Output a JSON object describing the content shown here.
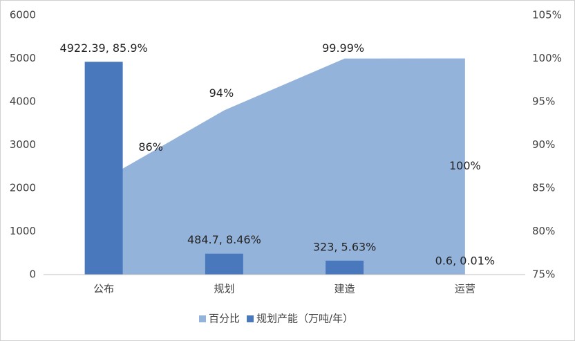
{
  "chart_data": {
    "type": "bar",
    "categories": [
      "公布",
      "规划",
      "建造",
      "运营"
    ],
    "series": [
      {
        "name": "百分比",
        "type": "area",
        "axis": "y2",
        "color": "#94b3da",
        "values": [
          86,
          94,
          99.99,
          100
        ],
        "value_labels": [
          "86%",
          "94%",
          "99.99%",
          "100%"
        ]
      },
      {
        "name": "规划产能（万吨/年）",
        "type": "bar",
        "color": "#4a78bd",
        "values": [
          4922.39,
          484.7,
          323,
          0.6
        ],
        "value_labels": [
          "4922.39, 85.9%",
          "484.7, 8.46%",
          "323, 5.63%",
          "0.6, 0.01%"
        ]
      }
    ],
    "ylim": [
      0,
      6000
    ],
    "yticks": [
      0,
      1000,
      2000,
      3000,
      4000,
      5000,
      6000
    ],
    "y2lim": [
      75,
      105
    ],
    "y2ticks": [
      {
        "value": 75,
        "label": "75%"
      },
      {
        "value": 80,
        "label": "80%"
      },
      {
        "value": 85,
        "label": "85%"
      },
      {
        "value": 90,
        "label": "90%"
      },
      {
        "value": 95,
        "label": "95%"
      },
      {
        "value": 100,
        "label": "100%"
      },
      {
        "value": 105,
        "label": "105%"
      }
    ],
    "legend": "bottom"
  }
}
